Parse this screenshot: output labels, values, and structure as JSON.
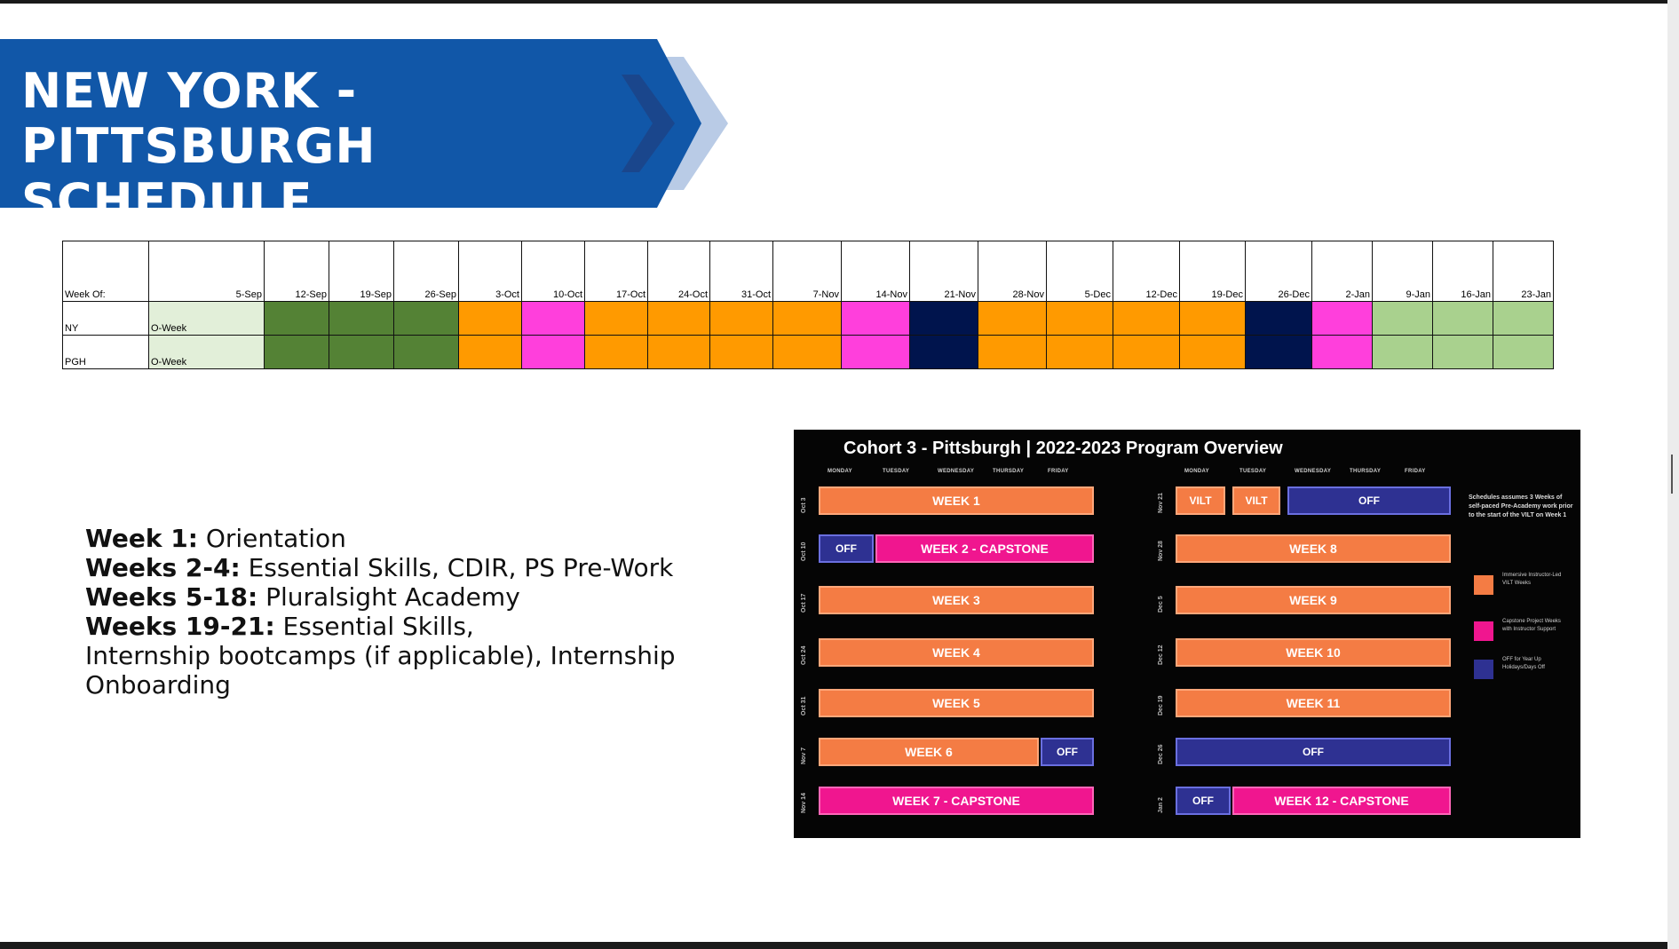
{
  "title": {
    "line1": "NEW YORK - PITTSBURGH",
    "line2": "SCHEDULE"
  },
  "colors": {
    "banner": "#1157a8",
    "green": "#548235",
    "orange": "#ff9a00",
    "pink": "#ff3fdc",
    "navy": "#00144d",
    "light_green": "#a9d18e",
    "oweek": "#e2efd9"
  },
  "table": {
    "header_label": "Week Of:",
    "weeks": [
      "5-Sep",
      "12-Sep",
      "19-Sep",
      "26-Sep",
      "3-Oct",
      "10-Oct",
      "17-Oct",
      "24-Oct",
      "31-Oct",
      "7-Nov",
      "14-Nov",
      "21-Nov",
      "28-Nov",
      "5-Dec",
      "12-Dec",
      "19-Dec",
      "26-Dec",
      "2-Jan",
      "9-Jan",
      "16-Jan",
      "23-Jan"
    ],
    "rows": [
      {
        "label": "NY",
        "first_cell": "O-Week",
        "cells": [
          "oweek",
          "green",
          "green",
          "green",
          "orange",
          "pink",
          "orange",
          "orange",
          "orange",
          "orange",
          "pink",
          "navy",
          "orange",
          "orange",
          "orange",
          "orange",
          "navy",
          "pink",
          "lgreen",
          "lgreen",
          "lgreen"
        ]
      },
      {
        "label": "PGH",
        "first_cell": "O-Week",
        "cells": [
          "oweek",
          "green",
          "green",
          "green",
          "orange",
          "pink",
          "orange",
          "orange",
          "orange",
          "orange",
          "pink",
          "navy",
          "orange",
          "orange",
          "orange",
          "orange",
          "navy",
          "pink",
          "lgreen",
          "lgreen",
          "lgreen"
        ]
      }
    ]
  },
  "notes": [
    {
      "bold": "Week 1:",
      "text": " Orientation"
    },
    {
      "bold": "Weeks 2-4:",
      "text": " Essential Skills, CDIR, PS Pre-Work"
    },
    {
      "bold": "Weeks 5-18:",
      "text": " Pluralsight Academy"
    },
    {
      "bold": "Weeks 19-21:",
      "text": " Essential Skills,"
    },
    {
      "bold": "",
      "text": "Internship bootcamps (if applicable), Internship"
    },
    {
      "bold": "",
      "text": "Onboarding"
    }
  ],
  "overview": {
    "title": "Cohort 3 - Pittsburgh | 2022-2023 Program Overview",
    "days": [
      "MONDAY",
      "TUESDAY",
      "WEDNESDAY",
      "THURSDAY",
      "FRIDAY"
    ],
    "left_rows": [
      {
        "date": "Oct 3",
        "bars": [
          {
            "label": "WEEK 1",
            "kind": "orange",
            "from": 0,
            "to": 5
          }
        ]
      },
      {
        "date": "Oct 10",
        "bars": [
          {
            "label": "OFF",
            "kind": "blue",
            "from": 0,
            "to": 1
          },
          {
            "label": "WEEK 2 - CAPSTONE",
            "kind": "pink",
            "from": 1,
            "to": 5
          }
        ]
      },
      {
        "date": "Oct 17",
        "bars": [
          {
            "label": "WEEK 3",
            "kind": "orange",
            "from": 0,
            "to": 5
          }
        ]
      },
      {
        "date": "Oct 24",
        "bars": [
          {
            "label": "WEEK 4",
            "kind": "orange",
            "from": 0,
            "to": 5
          }
        ]
      },
      {
        "date": "Oct 31",
        "bars": [
          {
            "label": "WEEK 5",
            "kind": "orange",
            "from": 0,
            "to": 5
          }
        ]
      },
      {
        "date": "Nov 7",
        "bars": [
          {
            "label": "WEEK 6",
            "kind": "orange",
            "from": 0,
            "to": 4
          },
          {
            "label": "OFF",
            "kind": "blue",
            "from": 4,
            "to": 5
          }
        ]
      },
      {
        "date": "Nov 14",
        "bars": [
          {
            "label": "WEEK 7 - CAPSTONE",
            "kind": "pink",
            "from": 0,
            "to": 5
          }
        ]
      }
    ],
    "right_rows": [
      {
        "date": "Nov 21",
        "bars": [
          {
            "label": "VILT",
            "kind": "orange",
            "from": 0,
            "to": 1
          },
          {
            "label": "VILT",
            "kind": "orange",
            "from": 1,
            "to": 2
          },
          {
            "label": "OFF",
            "kind": "blue",
            "from": 2,
            "to": 5
          }
        ]
      },
      {
        "date": "Nov 28",
        "bars": [
          {
            "label": "WEEK 8",
            "kind": "orange",
            "from": 0,
            "to": 5
          }
        ]
      },
      {
        "date": "Dec 5",
        "bars": [
          {
            "label": "WEEK 9",
            "kind": "orange",
            "from": 0,
            "to": 5
          }
        ]
      },
      {
        "date": "Dec 12",
        "bars": [
          {
            "label": "WEEK 10",
            "kind": "orange",
            "from": 0,
            "to": 5
          }
        ]
      },
      {
        "date": "Dec 19",
        "bars": [
          {
            "label": "WEEK 11",
            "kind": "orange",
            "from": 0,
            "to": 5
          }
        ]
      },
      {
        "date": "Dec 26",
        "bars": [
          {
            "label": "OFF",
            "kind": "blue",
            "from": 0,
            "to": 5
          }
        ]
      },
      {
        "date": "Jan 2",
        "bars": [
          {
            "label": "OFF",
            "kind": "blue",
            "from": 0,
            "to": 1
          },
          {
            "label": "WEEK 12 - CAPSTONE",
            "kind": "pink",
            "from": 1,
            "to": 5
          }
        ]
      }
    ],
    "note": "Schedules assumes 3 Weeks of self-paced Pre-Academy work prior to the start of the VILT on Week 1",
    "legend": [
      {
        "kind": "orange",
        "text": "Immersive Instructor-Led VILT Weeks"
      },
      {
        "kind": "pink",
        "text": "Capstone Project Weeks with Instructor Support"
      },
      {
        "kind": "blue",
        "text": "OFF for Year Up Holidays/Days Off"
      }
    ]
  }
}
